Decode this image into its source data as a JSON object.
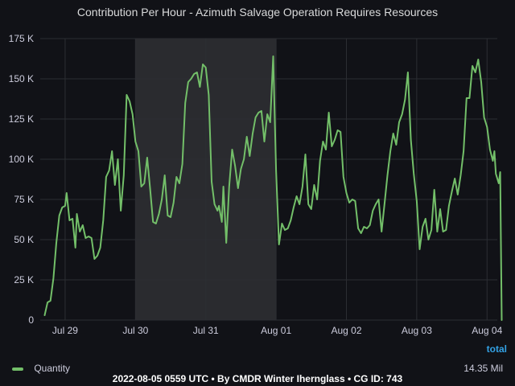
{
  "title": "Contribution Per Hour - Azimuth Salvage Operation Requires Resources",
  "legend": {
    "header": "total",
    "series_name": "Quantity",
    "total_value": "14.35 Mil"
  },
  "footer": "2022-08-05 0559 UTC • By CMDR Winter Ihernglass • CG ID: 743",
  "colors": {
    "series": "#73bf69",
    "highlight_band": "#2a2b2f",
    "grid": "#2c2e33",
    "background": "#111217"
  },
  "chart_data": {
    "type": "line",
    "title": "Contribution Per Hour - Azimuth Salvage Operation Requires Resources",
    "xlabel": "",
    "ylabel": "",
    "x_ticks": [
      "Jul 29",
      "Jul 30",
      "Jul 31",
      "Aug 01",
      "Aug 02",
      "Aug 03",
      "Aug 04"
    ],
    "y_ticks": [
      "0",
      "25 K",
      "50 K",
      "75 K",
      "100 K",
      "125 K",
      "150 K",
      "175 K"
    ],
    "ylim": [
      0,
      175000
    ],
    "xlim_hours": [
      -8.5,
      147.5
    ],
    "x_axis_note": "x values are hours from Jul 29 00:00 UTC",
    "highlight_range_hours": [
      24,
      72
    ],
    "grid": true,
    "legend_position": "bottom",
    "series": [
      {
        "name": "Quantity",
        "total": "14.35 Mil",
        "points": [
          [
            -7.0,
            3000
          ],
          [
            -6.0,
            11000
          ],
          [
            -5.0,
            12000
          ],
          [
            -4.0,
            26000
          ],
          [
            -3.0,
            48000
          ],
          [
            -2.0,
            65000
          ],
          [
            -1.0,
            70000
          ],
          [
            0.0,
            71000
          ],
          [
            0.5,
            79000
          ],
          [
            1.5,
            62000
          ],
          [
            2.5,
            63000
          ],
          [
            3.5,
            45000
          ],
          [
            4.0,
            66000
          ],
          [
            5.0,
            55000
          ],
          [
            6.0,
            59000
          ],
          [
            7.0,
            51000
          ],
          [
            8.0,
            52000
          ],
          [
            9.0,
            51000
          ],
          [
            10.0,
            38000
          ],
          [
            11.0,
            40000
          ],
          [
            12.0,
            45000
          ],
          [
            13.0,
            62000
          ],
          [
            14.0,
            89000
          ],
          [
            15.0,
            93000
          ],
          [
            16.0,
            105000
          ],
          [
            17.0,
            84000
          ],
          [
            18.0,
            100000
          ],
          [
            19.0,
            68000
          ],
          [
            20.0,
            90000
          ],
          [
            21.0,
            140000
          ],
          [
            22.0,
            136000
          ],
          [
            23.0,
            128000
          ],
          [
            24.0,
            111000
          ],
          [
            25.0,
            105000
          ],
          [
            26.0,
            83000
          ],
          [
            27.0,
            85000
          ],
          [
            28.0,
            101000
          ],
          [
            29.0,
            82000
          ],
          [
            30.0,
            61000
          ],
          [
            31.0,
            60000
          ],
          [
            32.0,
            66000
          ],
          [
            33.0,
            75000
          ],
          [
            34.0,
            90000
          ],
          [
            35.0,
            65000
          ],
          [
            36.0,
            64000
          ],
          [
            37.0,
            73000
          ],
          [
            38.0,
            89000
          ],
          [
            39.0,
            85000
          ],
          [
            40.0,
            97000
          ],
          [
            41.0,
            135000
          ],
          [
            42.0,
            148000
          ],
          [
            43.0,
            150000
          ],
          [
            44.0,
            153000
          ],
          [
            45.0,
            154000
          ],
          [
            46.0,
            145000
          ],
          [
            47.0,
            159000
          ],
          [
            48.0,
            157000
          ],
          [
            49.0,
            140000
          ],
          [
            50.0,
            86000
          ],
          [
            51.0,
            72000
          ],
          [
            52.0,
            68000
          ],
          [
            52.5,
            71000
          ],
          [
            53.5,
            61000
          ],
          [
            54.0,
            83000
          ],
          [
            55.0,
            48000
          ],
          [
            56.0,
            83000
          ],
          [
            57.0,
            106000
          ],
          [
            58.0,
            96000
          ],
          [
            59.0,
            82000
          ],
          [
            60.0,
            94000
          ],
          [
            61.0,
            100000
          ],
          [
            62.0,
            114000
          ],
          [
            63.0,
            102000
          ],
          [
            64.0,
            116000
          ],
          [
            65.0,
            126000
          ],
          [
            66.0,
            129000
          ],
          [
            67.0,
            130000
          ],
          [
            68.0,
            111000
          ],
          [
            69.0,
            128000
          ],
          [
            70.0,
            123000
          ],
          [
            71.0,
            164000
          ],
          [
            72.0,
            93000
          ],
          [
            73.0,
            47000
          ],
          [
            74.0,
            60000
          ],
          [
            75.0,
            56000
          ],
          [
            76.0,
            57000
          ],
          [
            77.0,
            62000
          ],
          [
            78.0,
            70000
          ],
          [
            79.0,
            77000
          ],
          [
            80.0,
            72000
          ],
          [
            81.0,
            83000
          ],
          [
            82.0,
            103000
          ],
          [
            83.0,
            72000
          ],
          [
            84.0,
            69000
          ],
          [
            85.0,
            84000
          ],
          [
            86.0,
            75000
          ],
          [
            87.0,
            99000
          ],
          [
            88.0,
            111000
          ],
          [
            89.0,
            106000
          ],
          [
            90.0,
            129000
          ],
          [
            91.0,
            108000
          ],
          [
            92.0,
            112000
          ],
          [
            93.0,
            118000
          ],
          [
            94.0,
            117000
          ],
          [
            95.0,
            89000
          ],
          [
            96.0,
            79000
          ],
          [
            97.0,
            73000
          ],
          [
            98.0,
            75000
          ],
          [
            99.0,
            74000
          ],
          [
            100.0,
            57000
          ],
          [
            101.0,
            54000
          ],
          [
            102.0,
            58000
          ],
          [
            103.0,
            57000
          ],
          [
            104.0,
            59000
          ],
          [
            105.0,
            68000
          ],
          [
            106.0,
            72000
          ],
          [
            107.0,
            75000
          ],
          [
            108.0,
            55000
          ],
          [
            109.0,
            72000
          ],
          [
            110.0,
            90000
          ],
          [
            111.0,
            105000
          ],
          [
            112.0,
            116000
          ],
          [
            113.0,
            109000
          ],
          [
            114.0,
            123000
          ],
          [
            115.0,
            128000
          ],
          [
            116.0,
            137000
          ],
          [
            117.0,
            154000
          ],
          [
            118.0,
            112000
          ],
          [
            119.0,
            91000
          ],
          [
            120.0,
            74000
          ],
          [
            121.0,
            44000
          ],
          [
            122.0,
            58000
          ],
          [
            123.0,
            63000
          ],
          [
            124.0,
            50000
          ],
          [
            125.0,
            56000
          ],
          [
            126.0,
            81000
          ],
          [
            127.0,
            55000
          ],
          [
            128.0,
            69000
          ],
          [
            129.0,
            55000
          ],
          [
            130.0,
            56000
          ],
          [
            131.0,
            71000
          ],
          [
            132.0,
            80000
          ],
          [
            133.0,
            88000
          ],
          [
            134.0,
            78000
          ],
          [
            135.0,
            90000
          ],
          [
            136.0,
            105000
          ],
          [
            137.0,
            138000
          ],
          [
            138.0,
            138000
          ],
          [
            139.0,
            158000
          ],
          [
            140.0,
            154000
          ],
          [
            141.0,
            162000
          ],
          [
            142.0,
            148000
          ],
          [
            143.0,
            126000
          ],
          [
            144.0,
            120000
          ],
          [
            145.0,
            106000
          ],
          [
            146.0,
            99000
          ],
          [
            146.5,
            105000
          ],
          [
            147.0,
            91000
          ],
          [
            148.0,
            85000
          ],
          [
            148.5,
            92000
          ],
          [
            149.0,
            0
          ]
        ]
      }
    ]
  }
}
